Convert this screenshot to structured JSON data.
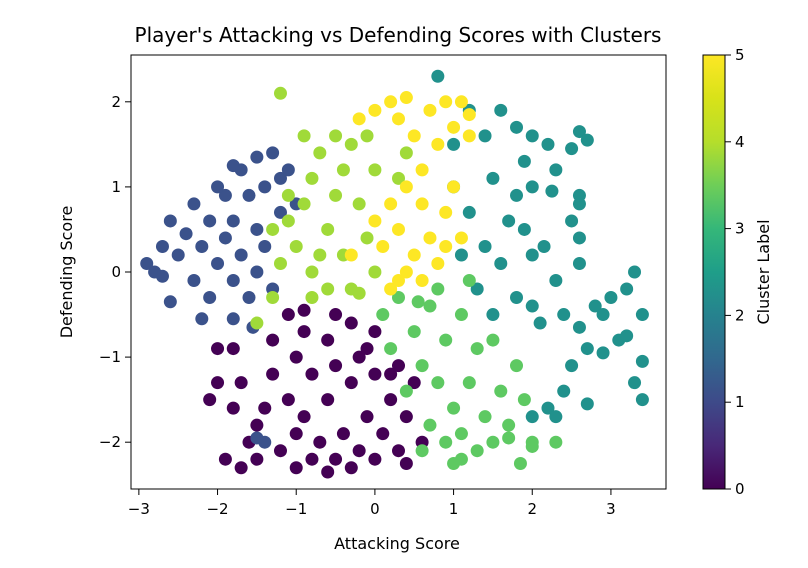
{
  "chart_data": {
    "type": "scatter",
    "title": "Player's Attacking vs Defending Scores with Clusters",
    "xlabel": "Attacking Score",
    "ylabel": "Defending Score",
    "xlim": [
      -3.1,
      3.7
    ],
    "ylim": [
      -2.55,
      2.55
    ],
    "xticks": [
      -3,
      -2,
      -1,
      0,
      1,
      2,
      3
    ],
    "yticks": [
      -2,
      -1,
      0,
      1,
      2
    ],
    "grid": false,
    "colorbar": {
      "label": "Cluster Label",
      "range": [
        0,
        5
      ],
      "ticks": [
        0,
        1,
        2,
        3,
        4,
        5
      ],
      "colormap": "viridis",
      "colors": [
        "#440154",
        "#3b528b",
        "#21918c",
        "#5ec962",
        "#a0da39",
        "#fde725"
      ]
    },
    "series": [
      {
        "cluster": 0,
        "color": "#440154",
        "points": [
          [
            -0.9,
            -0.7
          ],
          [
            -0.6,
            -0.8
          ],
          [
            -0.3,
            -0.6
          ],
          [
            0.0,
            -0.7
          ],
          [
            -0.2,
            -1.0
          ],
          [
            -0.5,
            -1.1
          ],
          [
            -0.8,
            -1.2
          ],
          [
            -1.0,
            -1.0
          ],
          [
            -1.1,
            -1.5
          ],
          [
            -0.9,
            -1.7
          ],
          [
            -0.6,
            -1.5
          ],
          [
            -0.3,
            -1.3
          ],
          [
            0.0,
            -1.2
          ],
          [
            0.2,
            -1.5
          ],
          [
            -0.1,
            -1.7
          ],
          [
            -0.4,
            -1.9
          ],
          [
            -0.7,
            -2.0
          ],
          [
            -1.0,
            -1.9
          ],
          [
            -1.2,
            -2.1
          ],
          [
            -0.8,
            -2.2
          ],
          [
            -0.5,
            -2.2
          ],
          [
            -0.2,
            -2.1
          ],
          [
            0.1,
            -1.9
          ],
          [
            0.3,
            -2.1
          ],
          [
            0.4,
            -1.7
          ],
          [
            0.2,
            -1.2
          ],
          [
            -0.1,
            -0.9
          ],
          [
            -1.3,
            -1.2
          ],
          [
            -1.4,
            -1.6
          ],
          [
            -1.5,
            -1.8
          ],
          [
            -1.6,
            -2.0
          ],
          [
            -1.8,
            -1.6
          ],
          [
            -1.7,
            -1.3
          ],
          [
            -1.3,
            -0.8
          ],
          [
            -2.0,
            -1.3
          ],
          [
            -2.1,
            -1.5
          ],
          [
            -1.7,
            -2.3
          ],
          [
            -1.5,
            -2.2
          ],
          [
            -1.9,
            -2.2
          ],
          [
            -1.8,
            -0.9
          ],
          [
            -2.0,
            -0.9
          ],
          [
            -1.1,
            -0.5
          ],
          [
            -0.9,
            -0.45
          ],
          [
            0.6,
            -2.0
          ],
          [
            0.4,
            -2.25
          ],
          [
            -0.3,
            -2.3
          ],
          [
            0.0,
            -2.2
          ],
          [
            0.3,
            -1.1
          ],
          [
            0.5,
            -1.3
          ],
          [
            -0.5,
            -0.5
          ],
          [
            -1.0,
            -2.3
          ],
          [
            -0.6,
            -2.35
          ]
        ]
      },
      {
        "cluster": 1,
        "color": "#3b528b",
        "points": [
          [
            -2.9,
            0.1
          ],
          [
            -2.8,
            0.0
          ],
          [
            -2.7,
            0.3
          ],
          [
            -2.6,
            0.6
          ],
          [
            -2.6,
            -0.35
          ],
          [
            -2.5,
            0.2
          ],
          [
            -2.4,
            0.45
          ],
          [
            -2.3,
            -0.1
          ],
          [
            -2.3,
            0.8
          ],
          [
            -2.2,
            0.3
          ],
          [
            -2.1,
            0.6
          ],
          [
            -2.1,
            -0.3
          ],
          [
            -2.0,
            0.1
          ],
          [
            -1.9,
            0.4
          ],
          [
            -1.9,
            0.9
          ],
          [
            -1.8,
            -0.1
          ],
          [
            -1.8,
            0.6
          ],
          [
            -1.7,
            0.2
          ],
          [
            -1.7,
            1.2
          ],
          [
            -1.6,
            0.9
          ],
          [
            -1.6,
            -0.3
          ],
          [
            -1.5,
            0.5
          ],
          [
            -1.5,
            0.0
          ],
          [
            -1.4,
            1.0
          ],
          [
            -1.4,
            0.3
          ],
          [
            -1.3,
            1.4
          ],
          [
            -1.2,
            1.1
          ],
          [
            -1.2,
            0.7
          ],
          [
            -2.2,
            -0.55
          ],
          [
            -1.8,
            -0.55
          ],
          [
            -1.5,
            1.35
          ],
          [
            -1.1,
            1.2
          ],
          [
            -1.0,
            0.8
          ],
          [
            -2.0,
            1.0
          ],
          [
            -1.8,
            1.25
          ],
          [
            -1.3,
            -0.2
          ],
          [
            -2.7,
            -0.05
          ],
          [
            -1.55,
            -0.65
          ],
          [
            -1.4,
            -2.0
          ],
          [
            -1.5,
            -1.95
          ]
        ]
      },
      {
        "cluster": 2,
        "color": "#21918c",
        "points": [
          [
            0.8,
            2.3
          ],
          [
            1.0,
            1.5
          ],
          [
            1.2,
            1.9
          ],
          [
            1.4,
            1.6
          ],
          [
            1.5,
            1.1
          ],
          [
            1.6,
            1.9
          ],
          [
            1.8,
            1.7
          ],
          [
            1.9,
            1.3
          ],
          [
            2.0,
            1.6
          ],
          [
            2.2,
            1.5
          ],
          [
            2.0,
            1.0
          ],
          [
            1.7,
            0.6
          ],
          [
            1.4,
            0.3
          ],
          [
            1.2,
            0.7
          ],
          [
            1.0,
            1.0
          ],
          [
            1.1,
            0.2
          ],
          [
            1.3,
            -0.2
          ],
          [
            1.6,
            0.1
          ],
          [
            1.8,
            -0.3
          ],
          [
            2.0,
            0.2
          ],
          [
            2.1,
            -0.6
          ],
          [
            2.3,
            -0.1
          ],
          [
            2.4,
            -0.5
          ],
          [
            2.6,
            0.1
          ],
          [
            2.8,
            -0.4
          ],
          [
            3.0,
            -0.3
          ],
          [
            3.2,
            -0.2
          ],
          [
            3.1,
            -0.8
          ],
          [
            3.3,
            0.0
          ],
          [
            3.4,
            -0.5
          ],
          [
            3.4,
            -1.05
          ],
          [
            3.3,
            -1.3
          ],
          [
            3.4,
            -1.5
          ],
          [
            3.2,
            -0.75
          ],
          [
            2.9,
            -0.95
          ],
          [
            2.7,
            -0.9
          ],
          [
            2.5,
            -1.1
          ],
          [
            2.4,
            -1.4
          ],
          [
            2.2,
            -1.6
          ],
          [
            2.0,
            -1.7
          ],
          [
            2.3,
            -1.7
          ],
          [
            2.7,
            -1.55
          ],
          [
            2.6,
            1.65
          ],
          [
            2.7,
            1.55
          ],
          [
            2.5,
            1.45
          ],
          [
            2.3,
            1.2
          ],
          [
            2.6,
            0.8
          ],
          [
            2.5,
            0.6
          ],
          [
            2.6,
            0.9
          ],
          [
            2.6,
            0.4
          ],
          [
            1.9,
            0.5
          ],
          [
            2.0,
            -0.4
          ],
          [
            1.5,
            -0.5
          ],
          [
            2.9,
            -0.5
          ],
          [
            2.6,
            -0.65
          ],
          [
            2.25,
            0.95
          ],
          [
            2.15,
            0.3
          ],
          [
            1.8,
            0.9
          ]
        ]
      },
      {
        "cluster": 3,
        "color": "#5ec962",
        "points": [
          [
            0.1,
            -0.5
          ],
          [
            0.3,
            -0.3
          ],
          [
            0.5,
            -0.7
          ],
          [
            0.7,
            -0.4
          ],
          [
            0.9,
            -0.8
          ],
          [
            1.1,
            -0.5
          ],
          [
            1.3,
            -0.9
          ],
          [
            0.6,
            -1.1
          ],
          [
            0.8,
            -1.3
          ],
          [
            1.0,
            -1.6
          ],
          [
            1.2,
            -1.3
          ],
          [
            1.4,
            -1.7
          ],
          [
            1.6,
            -1.4
          ],
          [
            1.8,
            -1.1
          ],
          [
            1.5,
            -2.0
          ],
          [
            1.3,
            -2.1
          ],
          [
            1.1,
            -1.9
          ],
          [
            0.9,
            -2.0
          ],
          [
            0.7,
            -1.8
          ],
          [
            0.4,
            -1.4
          ],
          [
            0.2,
            -0.9
          ],
          [
            1.7,
            -1.8
          ],
          [
            1.9,
            -1.5
          ],
          [
            2.0,
            -2.0
          ],
          [
            0.6,
            -2.1
          ],
          [
            1.0,
            -2.25
          ],
          [
            1.85,
            -2.25
          ],
          [
            2.0,
            -2.05
          ],
          [
            0.8,
            -0.2
          ],
          [
            1.2,
            -0.1
          ],
          [
            1.5,
            -0.8
          ],
          [
            1.7,
            -1.95
          ],
          [
            2.3,
            -2.0
          ],
          [
            1.1,
            -2.2
          ],
          [
            0.55,
            -0.35
          ]
        ]
      },
      {
        "cluster": 4,
        "color": "#a0da39",
        "points": [
          [
            -1.2,
            2.1
          ],
          [
            -0.9,
            1.6
          ],
          [
            -0.7,
            1.4
          ],
          [
            -0.8,
            1.1
          ],
          [
            -0.9,
            0.8
          ],
          [
            -1.1,
            0.6
          ],
          [
            -1.0,
            0.3
          ],
          [
            -0.8,
            0.0
          ],
          [
            -0.6,
            -0.2
          ],
          [
            -0.4,
            0.2
          ],
          [
            -0.6,
            0.5
          ],
          [
            -0.5,
            0.9
          ],
          [
            -0.4,
            1.2
          ],
          [
            -0.3,
            1.5
          ],
          [
            -0.1,
            1.6
          ],
          [
            0.0,
            1.2
          ],
          [
            -0.2,
            0.8
          ],
          [
            -0.1,
            0.4
          ],
          [
            0.0,
            0.0
          ],
          [
            -0.3,
            -0.2
          ],
          [
            -1.2,
            0.1
          ],
          [
            -1.3,
            0.5
          ],
          [
            -0.5,
            1.6
          ],
          [
            -0.8,
            -0.3
          ],
          [
            -0.7,
            0.2
          ],
          [
            -1.5,
            -0.6
          ],
          [
            -1.3,
            -0.3
          ],
          [
            -1.1,
            0.9
          ],
          [
            -0.2,
            -0.25
          ],
          [
            0.4,
            1.4
          ],
          [
            0.3,
            1.1
          ]
        ]
      },
      {
        "cluster": 5,
        "color": "#fde725",
        "points": [
          [
            0.2,
            2.0
          ],
          [
            0.3,
            1.8
          ],
          [
            0.5,
            1.6
          ],
          [
            0.7,
            1.9
          ],
          [
            0.8,
            1.5
          ],
          [
            0.9,
            2.0
          ],
          [
            1.0,
            1.7
          ],
          [
            1.2,
            1.6
          ],
          [
            0.6,
            1.2
          ],
          [
            0.4,
            1.0
          ],
          [
            0.2,
            0.8
          ],
          [
            0.0,
            0.6
          ],
          [
            0.1,
            0.3
          ],
          [
            0.3,
            0.5
          ],
          [
            0.5,
            0.2
          ],
          [
            0.7,
            0.4
          ],
          [
            0.9,
            0.7
          ],
          [
            1.1,
            0.4
          ],
          [
            1.0,
            1.0
          ],
          [
            0.8,
            0.1
          ],
          [
            0.6,
            -0.1
          ],
          [
            0.4,
            0.0
          ],
          [
            0.2,
            -0.2
          ],
          [
            -0.2,
            1.8
          ],
          [
            0.0,
            1.9
          ],
          [
            0.4,
            2.05
          ],
          [
            1.1,
            2.0
          ],
          [
            1.2,
            1.85
          ],
          [
            0.3,
            -0.1
          ],
          [
            0.6,
            0.8
          ],
          [
            -0.3,
            0.2
          ],
          [
            0.9,
            0.3
          ]
        ]
      }
    ]
  }
}
